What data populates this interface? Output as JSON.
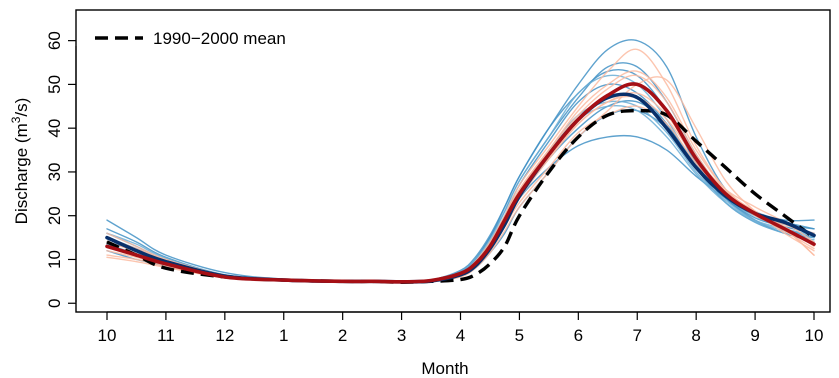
{
  "chart_data": {
    "type": "line",
    "title": "",
    "xlabel": "Month",
    "ylabel_prefix": "Discharge (m",
    "ylabel_sup": "3",
    "ylabel_suffix": "/s)",
    "x_tick_labels": [
      "10",
      "11",
      "12",
      "1",
      "2",
      "3",
      "4",
      "5",
      "6",
      "7",
      "8",
      "9",
      "10"
    ],
    "x_range": [
      0,
      12
    ],
    "y_ticks": [
      0,
      10,
      20,
      30,
      40,
      50,
      60
    ],
    "ylim": [
      -2,
      67
    ],
    "grid": false,
    "legend": {
      "position": "top-left",
      "entries": [
        {
          "label": "1990−2000 mean",
          "style": "dashed",
          "color": "#000000"
        }
      ]
    },
    "series": [
      {
        "name": "1990−2000 mean",
        "role": "reference",
        "style": "dashed",
        "color": "#000000",
        "x": [
          0,
          0.5,
          1,
          2,
          3,
          4,
          4.5,
          5,
          5.5,
          6,
          6.25,
          6.5,
          6.75,
          7,
          7.5,
          8,
          8.5,
          9,
          9.5,
          10,
          10.5,
          11,
          11.5,
          12
        ],
        "y": [
          14,
          11,
          8,
          6,
          5.3,
          5,
          5,
          4.8,
          5,
          5.4,
          6.5,
          9,
          13,
          20,
          30,
          38,
          43,
          44,
          43,
          37,
          31,
          25,
          20,
          15
        ]
      },
      {
        "name": "",
        "role": "mean-blue",
        "color": "#08306b",
        "x": [
          0,
          0.5,
          1,
          2,
          3,
          4,
          4.5,
          5,
          5.5,
          6,
          6.25,
          6.5,
          6.75,
          7,
          7.5,
          8,
          8.5,
          9,
          9.5,
          10,
          10.5,
          11,
          11.5,
          12
        ],
        "y": [
          15,
          12,
          9.5,
          6.2,
          5.3,
          5,
          5,
          4.9,
          5.1,
          6.5,
          8.5,
          12.5,
          18,
          24.5,
          34,
          42,
          47,
          47,
          40,
          31,
          24.5,
          20.5,
          18.5,
          15.5
        ]
      },
      {
        "name": "",
        "role": "mean-red",
        "color": "#a50f15",
        "x": [
          0,
          0.5,
          1,
          2,
          3,
          4,
          4.5,
          5,
          5.5,
          6,
          6.25,
          6.5,
          6.75,
          7,
          7.5,
          8,
          8.5,
          9,
          9.5,
          10,
          10.5,
          11,
          11.5,
          12
        ],
        "y": [
          13,
          11,
          9,
          6,
          5.3,
          5,
          5,
          4.9,
          5.2,
          6.8,
          9,
          13,
          19,
          25,
          34,
          42,
          47.5,
          50,
          44,
          33,
          25,
          20.5,
          17,
          13.5
        ]
      },
      {
        "name": "",
        "role": "member",
        "color": "#4292c6",
        "x": [
          0,
          0.5,
          1,
          2,
          3,
          4,
          4.5,
          5,
          5.5,
          6,
          6.25,
          6.5,
          6.75,
          7,
          7.5,
          8,
          8.5,
          9,
          9.5,
          10,
          10.5,
          11,
          11.5,
          12
        ],
        "y": [
          19,
          15,
          11,
          7,
          5.5,
          5.2,
          5.1,
          5,
          5.2,
          7,
          10,
          15,
          22,
          29,
          40,
          50,
          58,
          60,
          54,
          38,
          26,
          21,
          19,
          19
        ]
      },
      {
        "name": "",
        "role": "member",
        "color": "#4292c6",
        "x": [
          0,
          0.5,
          1,
          2,
          3,
          4,
          4.5,
          5,
          5.5,
          6,
          6.25,
          6.5,
          6.75,
          7,
          7.5,
          8,
          8.5,
          9,
          9.5,
          10,
          10.5,
          11,
          11.5,
          12
        ],
        "y": [
          17,
          14,
          10.5,
          6.5,
          5.4,
          5.1,
          5,
          5,
          5.3,
          7.2,
          10,
          15,
          21,
          28,
          38,
          47,
          54,
          54,
          46,
          34,
          25,
          20.5,
          18,
          17
        ]
      },
      {
        "name": "",
        "role": "member",
        "color": "#4292c6",
        "x": [
          0,
          0.5,
          1,
          2,
          3,
          4,
          4.5,
          5,
          5.5,
          6,
          6.25,
          6.5,
          6.75,
          7,
          7.5,
          8,
          8.5,
          9,
          9.5,
          10,
          10.5,
          11,
          11.5,
          12
        ],
        "y": [
          13,
          11,
          9,
          6,
          5.2,
          5,
          5,
          4.9,
          5,
          6.3,
          8.5,
          12.5,
          18,
          24,
          33,
          40,
          45,
          46,
          41,
          31,
          23,
          18.5,
          16,
          14
        ]
      },
      {
        "name": "",
        "role": "member",
        "color": "#4292c6",
        "x": [
          0,
          0.5,
          1,
          2,
          3,
          4,
          4.5,
          5,
          5.5,
          6,
          6.25,
          6.5,
          6.75,
          7,
          7.5,
          8,
          8.5,
          9,
          9.5,
          10,
          10.5,
          11,
          11.5,
          12
        ],
        "y": [
          16,
          13,
          10,
          6.4,
          5.4,
          5.1,
          5,
          5,
          5.1,
          6.6,
          9,
          13,
          18,
          24,
          31,
          36,
          38,
          38,
          35,
          29,
          24,
          20,
          18.5,
          17
        ]
      },
      {
        "name": "",
        "role": "member",
        "color": "#4292c6",
        "x": [
          0,
          0.5,
          1,
          2,
          3,
          4,
          4.5,
          5,
          5.5,
          6,
          6.25,
          6.5,
          6.75,
          7,
          7.5,
          8,
          8.5,
          9,
          9.5,
          10,
          10.5,
          11,
          11.5,
          12
        ],
        "y": [
          14,
          12,
          9.5,
          6.2,
          5.3,
          5,
          5,
          5,
          5.3,
          7.5,
          10.5,
          15.5,
          22,
          29,
          40,
          48,
          53,
          52,
          44,
          32,
          24,
          19,
          16,
          15
        ]
      },
      {
        "name": "",
        "role": "member",
        "color": "#4292c6",
        "x": [
          0,
          0.5,
          1,
          2,
          3,
          4,
          4.5,
          5,
          5.5,
          6,
          6.25,
          6.5,
          6.75,
          7,
          7.5,
          8,
          8.5,
          9,
          9.5,
          10,
          10.5,
          11,
          11.5,
          12
        ],
        "y": [
          12,
          10,
          8.5,
          5.9,
          5.2,
          5,
          4.9,
          4.9,
          5,
          6.2,
          8,
          11.5,
          16,
          22,
          30,
          38,
          43,
          44,
          40,
          32,
          25,
          20,
          17,
          15
        ]
      },
      {
        "name": "",
        "role": "member",
        "color": "#4292c6",
        "x": [
          0,
          0.5,
          1,
          2,
          3,
          4,
          4.5,
          5,
          5.5,
          6,
          6.25,
          6.5,
          6.75,
          7,
          7.5,
          8,
          8.5,
          9,
          9.5,
          10,
          10.5,
          11,
          11.5,
          12
        ],
        "y": [
          15,
          12.5,
          9.8,
          6.3,
          5.3,
          5,
          5,
          4.9,
          5.1,
          6.8,
          9.5,
          14,
          20,
          27,
          37,
          46,
          50,
          48,
          41,
          31,
          24,
          19.5,
          17.5,
          16
        ]
      },
      {
        "name": "",
        "role": "member",
        "color": "#6baed6",
        "x": [
          0,
          0.5,
          1,
          2,
          3,
          4,
          4.5,
          5,
          5.5,
          6,
          6.25,
          6.5,
          6.75,
          7,
          7.5,
          8,
          8.5,
          9,
          9.5,
          10,
          10.5,
          11,
          11.5,
          12
        ],
        "y": [
          14,
          12,
          9.6,
          6.2,
          5.3,
          5,
          5,
          4.9,
          5.1,
          6.5,
          9,
          13,
          19,
          25.5,
          35,
          43,
          46,
          45,
          39,
          30,
          23.5,
          19,
          17,
          15.5
        ]
      },
      {
        "name": "",
        "role": "member",
        "color": "#6baed6",
        "x": [
          0,
          0.5,
          1,
          2,
          3,
          4,
          4.5,
          5,
          5.5,
          6,
          6.25,
          6.5,
          6.75,
          7,
          7.5,
          8,
          8.5,
          9,
          9.5,
          10,
          10.5,
          11,
          11.5,
          12
        ],
        "y": [
          16,
          13.5,
          10.3,
          6.5,
          5.4,
          5.1,
          5,
          5,
          5.2,
          7,
          10,
          14.5,
          21,
          28,
          38,
          48,
          52,
          50,
          42,
          31,
          23,
          18.5,
          16,
          14.5
        ]
      },
      {
        "name": "",
        "role": "member",
        "color": "#6baed6",
        "x": [
          0,
          0.5,
          1,
          2,
          3,
          4,
          4.5,
          5,
          5.5,
          6,
          6.25,
          6.5,
          6.75,
          7,
          7.5,
          8,
          8.5,
          9,
          9.5,
          10,
          10.5,
          11,
          11.5,
          12
        ],
        "y": [
          13.5,
          11.3,
          9.2,
          6.1,
          5.2,
          5,
          5,
          4.9,
          5,
          6.4,
          8.8,
          12.8,
          18.5,
          25,
          34,
          42,
          45,
          44,
          38,
          29.5,
          23,
          18.8,
          16.5,
          15
        ]
      },
      {
        "name": "",
        "role": "member",
        "color": "#fcbba1",
        "x": [
          0,
          0.5,
          1,
          2,
          3,
          4,
          4.5,
          5,
          5.5,
          6,
          6.25,
          6.5,
          6.75,
          7,
          7.5,
          8,
          8.5,
          9,
          9.5,
          10,
          10.5,
          11,
          11.5,
          12
        ],
        "y": [
          11,
          10,
          8.5,
          5.8,
          5.1,
          5,
          5,
          4.9,
          5,
          6,
          8,
          11.5,
          16.5,
          22,
          30,
          38,
          44,
          50,
          51,
          40,
          28,
          21,
          16,
          12
        ]
      },
      {
        "name": "",
        "role": "member",
        "color": "#fcbba1",
        "x": [
          0,
          0.5,
          1,
          2,
          3,
          4,
          4.5,
          5,
          5.5,
          6,
          6.25,
          6.5,
          6.75,
          7,
          7.5,
          8,
          8.5,
          9,
          9.5,
          10,
          10.5,
          11,
          11.5,
          12
        ],
        "y": [
          15,
          12.5,
          10,
          6.4,
          5.3,
          5.1,
          5,
          5,
          5.3,
          6.8,
          9.5,
          14,
          20,
          27,
          36,
          45,
          53,
          58,
          50,
          36,
          26,
          21,
          17.5,
          13
        ]
      },
      {
        "name": "",
        "role": "member",
        "color": "#fcbba1",
        "x": [
          0,
          0.5,
          1,
          2,
          3,
          4,
          4.5,
          5,
          5.5,
          6,
          6.25,
          6.5,
          6.75,
          7,
          7.5,
          8,
          8.5,
          9,
          9.5,
          10,
          10.5,
          11,
          11.5,
          12
        ],
        "y": [
          12,
          10.5,
          8.8,
          5.9,
          5.2,
          5,
          5,
          4.9,
          5.1,
          6.3,
          8.5,
          12.5,
          18,
          24,
          33,
          41,
          46,
          47,
          42,
          33,
          26,
          22,
          18.5,
          14
        ]
      },
      {
        "name": "",
        "role": "member",
        "color": "#fcbba1",
        "x": [
          0,
          0.5,
          1,
          2,
          3,
          4,
          4.5,
          5,
          5.5,
          6,
          6.25,
          6.5,
          6.75,
          7,
          7.5,
          8,
          8.5,
          9,
          9.5,
          10,
          10.5,
          11,
          11.5,
          12
        ],
        "y": [
          14,
          11.8,
          9.3,
          6.1,
          5.3,
          5,
          5,
          4.9,
          5.2,
          6.6,
          9,
          13.5,
          19.5,
          26,
          35,
          43,
          49,
          52,
          46,
          34,
          25,
          20,
          17,
          11
        ]
      },
      {
        "name": "",
        "role": "member",
        "color": "#fcbba1",
        "x": [
          0,
          0.5,
          1,
          2,
          3,
          4,
          4.5,
          5,
          5.5,
          6,
          6.25,
          6.5,
          6.75,
          7,
          7.5,
          8,
          8.5,
          9,
          9.5,
          10,
          10.5,
          11,
          11.5,
          12
        ],
        "y": [
          13,
          11,
          9,
          6,
          5.2,
          5,
          5,
          5,
          5.2,
          6.5,
          8.8,
          12.8,
          18.5,
          25,
          33,
          41,
          46,
          48,
          43,
          33,
          25.5,
          21,
          18,
          16
        ]
      },
      {
        "name": "",
        "role": "member",
        "color": "#fcbba1",
        "x": [
          0,
          0.5,
          1,
          2,
          3,
          4,
          4.5,
          5,
          5.5,
          6,
          6.25,
          6.5,
          6.75,
          7,
          7.5,
          8,
          8.5,
          9,
          9.5,
          10,
          10.5,
          11,
          11.5,
          12
        ],
        "y": [
          16,
          13,
          10,
          6.3,
          5.3,
          5.1,
          5,
          5,
          5.1,
          6.7,
          9.2,
          13.5,
          19.5,
          26,
          35,
          44,
          50,
          53,
          47,
          35,
          26,
          20.5,
          16.5,
          12.5
        ]
      },
      {
        "name": "",
        "role": "member",
        "color": "#fcbba1",
        "x": [
          0,
          0.5,
          1,
          2,
          3,
          4,
          4.5,
          5,
          5.5,
          6,
          6.25,
          6.5,
          6.75,
          7,
          7.5,
          8,
          8.5,
          9,
          9.5,
          10,
          10.5,
          11,
          11.5,
          12
        ],
        "y": [
          10.5,
          9.5,
          8.2,
          5.8,
          5.1,
          5,
          4.9,
          4.9,
          5,
          6.1,
          8.2,
          12,
          17.5,
          23,
          31,
          39,
          43,
          45,
          41,
          32,
          25,
          21,
          17,
          11
        ]
      }
    ]
  }
}
